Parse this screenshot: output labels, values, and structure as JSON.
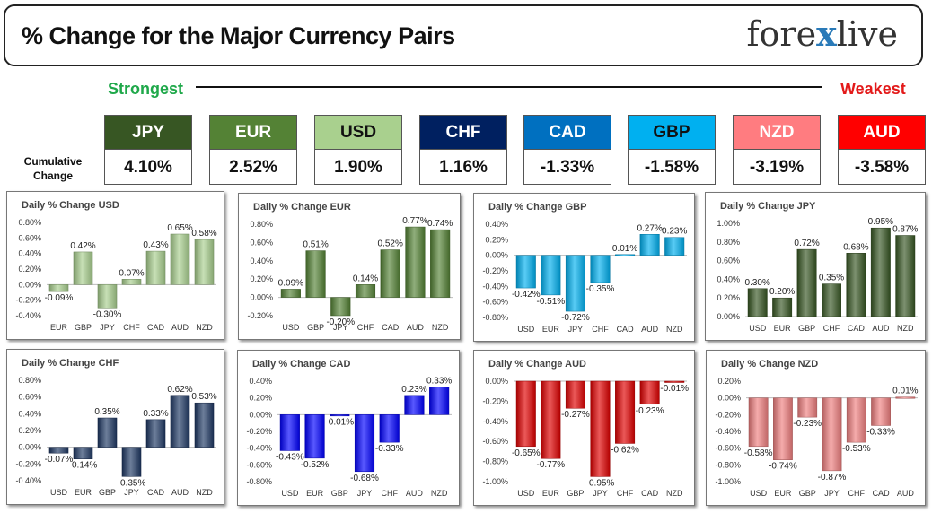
{
  "header": {
    "title": "% Change for the Major Currency Pairs",
    "logo_left": "fore",
    "logo_x": "x",
    "logo_right": "live"
  },
  "strength": {
    "strongest": "Strongest",
    "weakest": "Weakest",
    "cumulative_label": "Cumulative Change"
  },
  "currencies": [
    {
      "name": "JPY",
      "value": "4.10%",
      "bg": "#375623",
      "fg": "#ffffff"
    },
    {
      "name": "EUR",
      "value": "2.52%",
      "bg": "#548235",
      "fg": "#ffffff"
    },
    {
      "name": "USD",
      "value": "1.90%",
      "bg": "#a9d08e",
      "fg": "#111111"
    },
    {
      "name": "CHF",
      "value": "1.16%",
      "bg": "#002060",
      "fg": "#ffffff"
    },
    {
      "name": "CAD",
      "value": "-1.33%",
      "bg": "#0070c0",
      "fg": "#ffffff"
    },
    {
      "name": "GBP",
      "value": "-1.58%",
      "bg": "#00b0f0",
      "fg": "#111111"
    },
    {
      "name": "NZD",
      "value": "-3.19%",
      "bg": "#ff7c80",
      "fg": "#ffffff"
    },
    {
      "name": "AUD",
      "value": "-3.58%",
      "bg": "#ff0000",
      "fg": "#ffffff"
    }
  ],
  "chart_data": [
    {
      "type": "bar",
      "title": "Daily % Change USD",
      "color": "#a9d08e",
      "categories": [
        "EUR",
        "GBP",
        "JPY",
        "CHF",
        "CAD",
        "AUD",
        "NZD"
      ],
      "values": [
        -0.09,
        0.42,
        -0.3,
        0.07,
        0.43,
        0.65,
        0.58
      ],
      "labels": [
        "-0.09%",
        "0.42%",
        "-0.30%",
        "0.07%",
        "0.43%",
        "0.65%",
        "0.58%"
      ],
      "ylim": [
        -0.4,
        0.8
      ],
      "yticks": [
        -0.4,
        -0.2,
        0,
        0.2,
        0.4,
        0.6,
        0.8
      ],
      "ytick_labels": [
        "-0.40%",
        "-0.20%",
        "0.00%",
        "0.20%",
        "0.40%",
        "0.60%",
        "0.80%"
      ]
    },
    {
      "type": "bar",
      "title": "Daily % Change EUR",
      "color": "#548235",
      "categories": [
        "USD",
        "GBP",
        "JPY",
        "CHF",
        "CAD",
        "AUD",
        "NZD"
      ],
      "values": [
        0.09,
        0.51,
        -0.2,
        0.14,
        0.52,
        0.77,
        0.74
      ],
      "labels": [
        "0.09%",
        "0.51%",
        "-0.20%",
        "0.14%",
        "0.52%",
        "0.77%",
        "0.74%"
      ],
      "ylim": [
        -0.2,
        0.8
      ],
      "yticks": [
        -0.2,
        0,
        0.2,
        0.4,
        0.6,
        0.8
      ],
      "ytick_labels": [
        "-0.20%",
        "0.00%",
        "0.20%",
        "0.40%",
        "0.60%",
        "0.80%"
      ]
    },
    {
      "type": "bar",
      "title": "Daily % Change GBP",
      "color": "#00b0f0",
      "categories": [
        "USD",
        "EUR",
        "JPY",
        "CHF",
        "CAD",
        "AUD",
        "NZD"
      ],
      "values": [
        -0.42,
        -0.51,
        -0.72,
        -0.35,
        0.01,
        0.27,
        0.23
      ],
      "labels": [
        "-0.42%",
        "-0.51%",
        "-0.72%",
        "-0.35%",
        "0.01%",
        "0.27%",
        "0.23%"
      ],
      "ylim": [
        -0.8,
        0.4
      ],
      "yticks": [
        -0.8,
        -0.6,
        -0.4,
        -0.2,
        0,
        0.2,
        0.4
      ],
      "ytick_labels": [
        "-0.80%",
        "-0.60%",
        "-0.40%",
        "-0.20%",
        "0.00%",
        "0.20%",
        "0.40%"
      ]
    },
    {
      "type": "bar",
      "title": "Daily % Change JPY",
      "color": "#375623",
      "categories": [
        "USD",
        "EUR",
        "GBP",
        "CHF",
        "CAD",
        "AUD",
        "NZD"
      ],
      "values": [
        0.3,
        0.2,
        0.72,
        0.35,
        0.68,
        0.95,
        0.87
      ],
      "labels": [
        "0.30%",
        "0.20%",
        "0.72%",
        "0.35%",
        "0.68%",
        "0.95%",
        "0.87%"
      ],
      "ylim": [
        0,
        1.0
      ],
      "yticks": [
        0,
        0.2,
        0.4,
        0.6,
        0.8,
        1.0
      ],
      "ytick_labels": [
        "0.00%",
        "0.20%",
        "0.40%",
        "0.60%",
        "0.80%",
        "1.00%"
      ]
    },
    {
      "type": "bar",
      "title": "Daily % Change CHF",
      "color": "#1f3864",
      "categories": [
        "USD",
        "EUR",
        "GBP",
        "JPY",
        "CAD",
        "AUD",
        "NZD"
      ],
      "values": [
        -0.07,
        -0.14,
        0.35,
        -0.35,
        0.33,
        0.62,
        0.53
      ],
      "labels": [
        "-0.07%",
        "-0.14%",
        "0.35%",
        "-0.35%",
        "0.33%",
        "0.62%",
        "0.53%"
      ],
      "ylim": [
        -0.4,
        0.8
      ],
      "yticks": [
        -0.4,
        -0.2,
        0,
        0.2,
        0.4,
        0.6,
        0.8
      ],
      "ytick_labels": [
        "-0.40%",
        "-0.20%",
        "0.00%",
        "0.20%",
        "0.40%",
        "0.60%",
        "0.80%"
      ]
    },
    {
      "type": "bar",
      "title": "Daily % Change CAD",
      "color": "#0000ff",
      "categories": [
        "USD",
        "EUR",
        "GBP",
        "JPY",
        "CHF",
        "AUD",
        "NZD"
      ],
      "values": [
        -0.43,
        -0.52,
        -0.01,
        -0.68,
        -0.33,
        0.23,
        0.33
      ],
      "labels": [
        "-0.43%",
        "-0.52%",
        "-0.01%",
        "-0.68%",
        "-0.33%",
        "0.23%",
        "0.33%"
      ],
      "ylim": [
        -0.8,
        0.4
      ],
      "yticks": [
        -0.8,
        -0.6,
        -0.4,
        -0.2,
        0,
        0.2,
        0.4
      ],
      "ytick_labels": [
        "-0.80%",
        "-0.60%",
        "-0.40%",
        "-0.20%",
        "0.00%",
        "0.20%",
        "0.40%"
      ]
    },
    {
      "type": "bar",
      "title": "Daily % Change AUD",
      "color": "#e00000",
      "categories": [
        "USD",
        "EUR",
        "GBP",
        "JPY",
        "CHF",
        "CAD",
        "NZD"
      ],
      "values": [
        -0.65,
        -0.77,
        -0.27,
        -0.95,
        -0.62,
        -0.23,
        -0.01
      ],
      "labels": [
        "-0.65%",
        "-0.77%",
        "-0.27%",
        "-0.95%",
        "-0.62%",
        "-0.23%",
        "-0.01%"
      ],
      "ylim": [
        -1.0,
        0
      ],
      "yticks": [
        -1.0,
        -0.8,
        -0.6,
        -0.4,
        -0.2,
        0
      ],
      "ytick_labels": [
        "-1.00%",
        "-0.80%",
        "-0.60%",
        "-0.40%",
        "-0.20%",
        "0.00%"
      ]
    },
    {
      "type": "bar",
      "title": "Daily % Change NZD",
      "color": "#f08080",
      "categories": [
        "USD",
        "EUR",
        "GBP",
        "JPY",
        "CHF",
        "CAD",
        "AUD"
      ],
      "values": [
        -0.58,
        -0.74,
        -0.23,
        -0.87,
        -0.53,
        -0.33,
        0.01
      ],
      "labels": [
        "-0.58%",
        "-0.74%",
        "-0.23%",
        "-0.87%",
        "-0.53%",
        "-0.33%",
        "0.01%"
      ],
      "ylim": [
        -1.0,
        0.2
      ],
      "yticks": [
        -1.0,
        -0.8,
        -0.6,
        -0.4,
        -0.2,
        0,
        0.2
      ],
      "ytick_labels": [
        "-1.00%",
        "-0.80%",
        "-0.60%",
        "-0.40%",
        "-0.20%",
        "0.00%",
        "0.20%"
      ]
    }
  ]
}
